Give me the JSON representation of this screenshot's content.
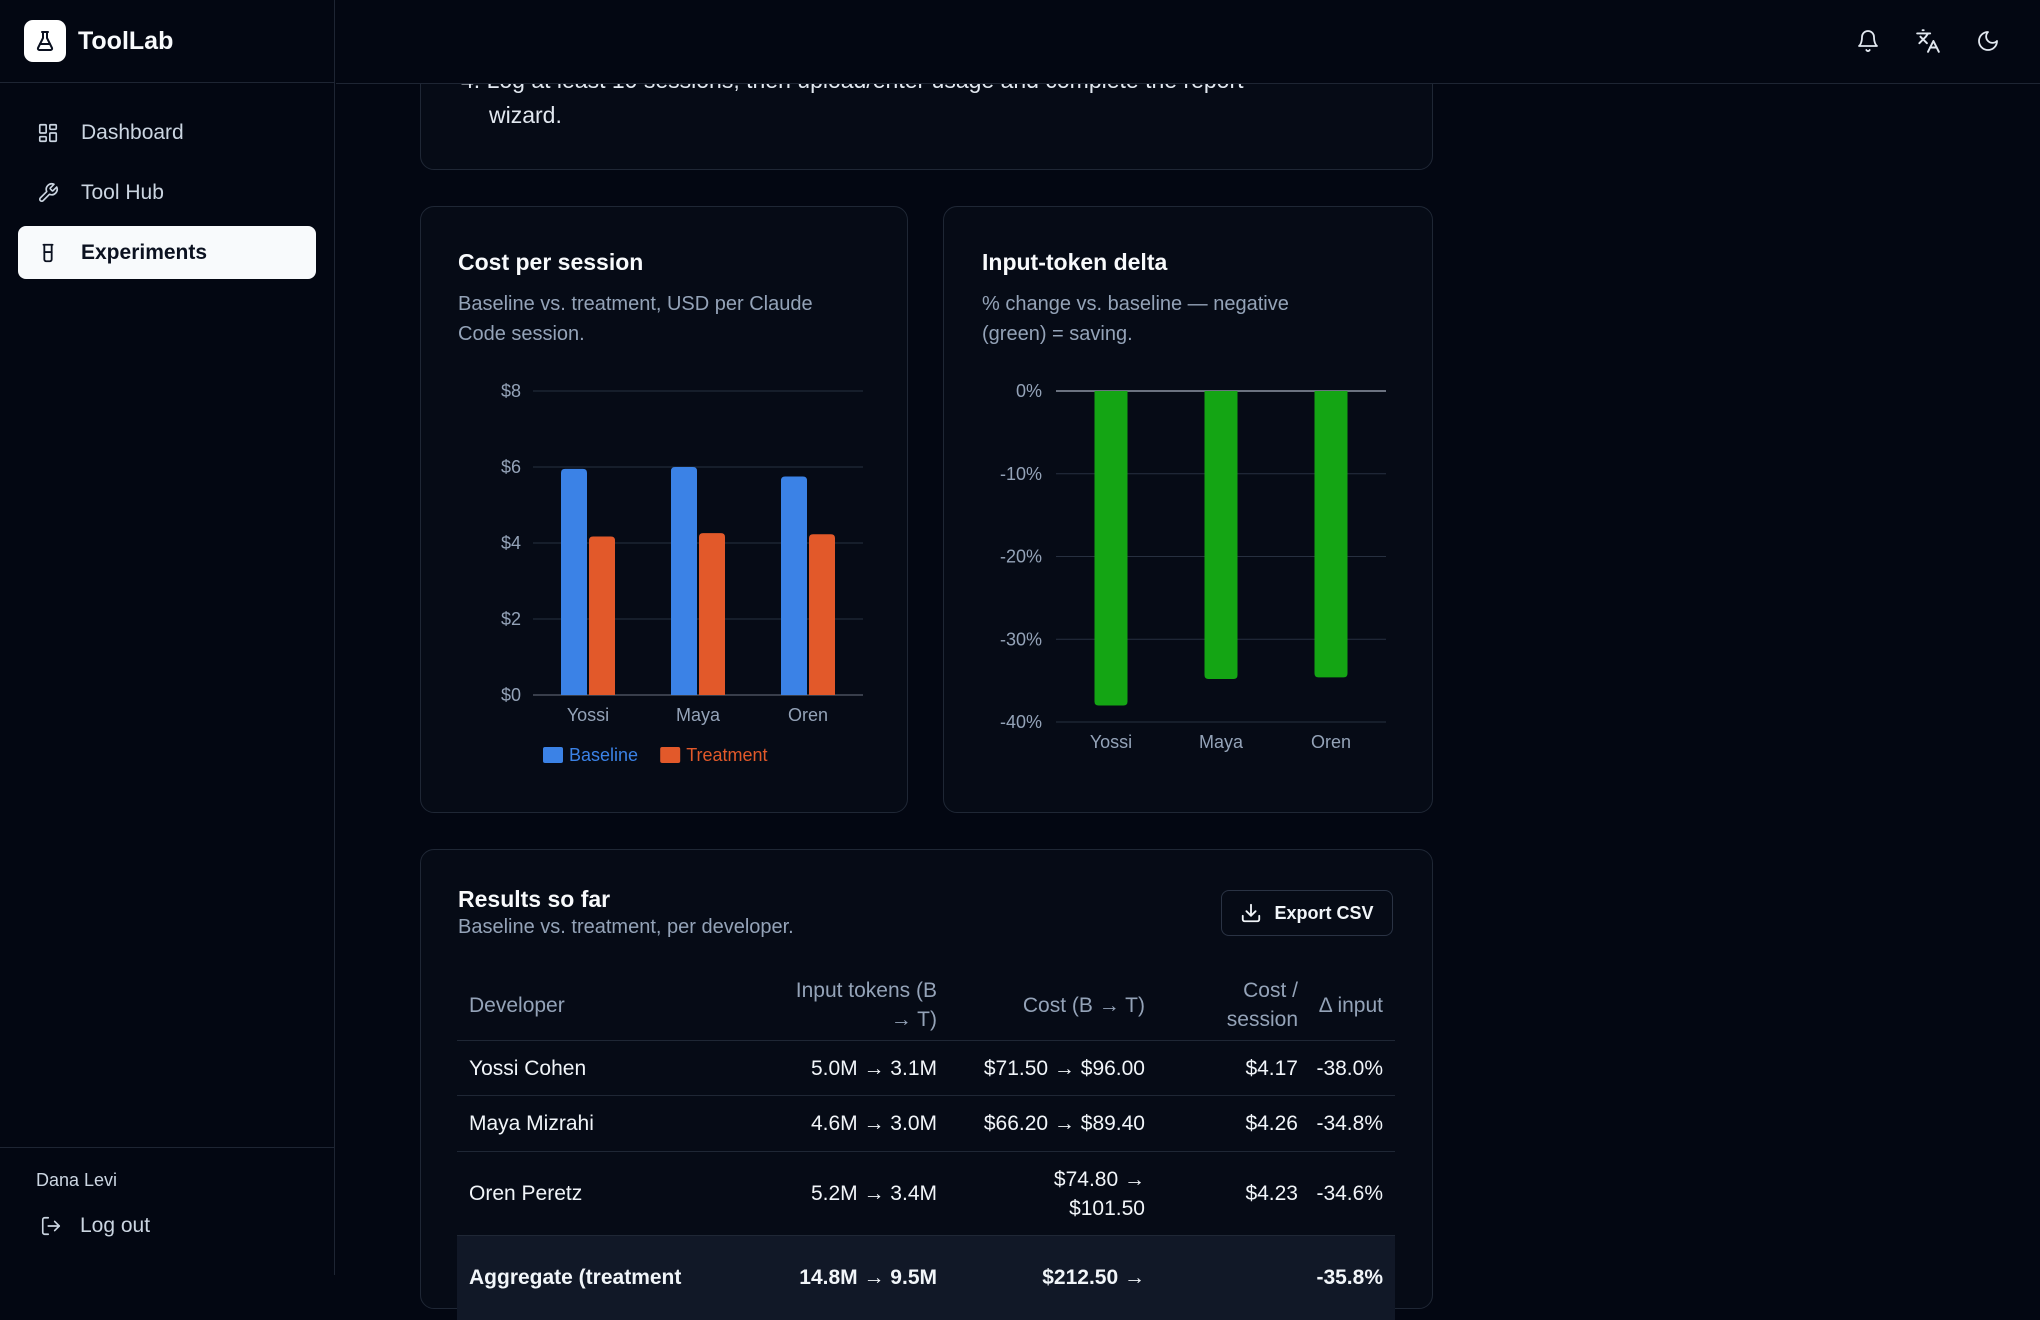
{
  "app": {
    "name": "ToolLab"
  },
  "sidebar": {
    "items": [
      {
        "label": "Dashboard",
        "icon": "dashboard-icon",
        "active": false
      },
      {
        "label": "Tool Hub",
        "icon": "wrench-icon",
        "active": false
      },
      {
        "label": "Experiments",
        "icon": "beaker-icon",
        "active": true
      }
    ],
    "user_name": "Dana Levi",
    "logout_label": "Log out"
  },
  "topbar": {
    "icons": [
      "bell-icon",
      "translate-icon",
      "moon-icon"
    ]
  },
  "instructions": {
    "line_partial": "4. Log at least 10 sessions, then upload/enter usage and complete the report",
    "line_continuation": "wizard."
  },
  "cost_chart": {
    "title": "Cost per session",
    "subtitle_line1": "Baseline vs. treatment, USD per Claude",
    "subtitle_line2": "Code session."
  },
  "delta_chart": {
    "title": "Input-token delta",
    "subtitle_line1": "% change vs. baseline — negative",
    "subtitle_line2": "(green) = saving."
  },
  "chart_data": [
    {
      "type": "bar",
      "title": "Cost per session",
      "categories": [
        "Yossi",
        "Maya",
        "Oren"
      ],
      "series": [
        {
          "name": "Baseline",
          "values": [
            5.95,
            6.0,
            5.75
          ],
          "color": "#3b82e6"
        },
        {
          "name": "Treatment",
          "values": [
            4.17,
            4.26,
            4.23
          ],
          "color": "#e2592a"
        }
      ],
      "y_ticks": [
        "$0",
        "$2",
        "$4",
        "$6",
        "$8"
      ],
      "ylim": [
        0,
        8
      ],
      "grid": true,
      "legend": "bottom"
    },
    {
      "type": "bar",
      "title": "Input-token delta",
      "categories": [
        "Yossi",
        "Maya",
        "Oren"
      ],
      "values": [
        -38.0,
        -34.8,
        -34.6
      ],
      "color": "#14a514",
      "y_ticks": [
        "0%",
        "-10%",
        "-20%",
        "-30%",
        "-40%"
      ],
      "ylim": [
        -40,
        0
      ],
      "grid": true
    }
  ],
  "results": {
    "title": "Results so far",
    "subtitle": "Baseline vs. treatment, per developer.",
    "export_label": "Export CSV",
    "headers": {
      "developer": "Developer",
      "tokens_1": "Input tokens (B",
      "tokens_2": "→ T)",
      "cost": "Cost (B → T)",
      "per_session_1": "Cost /",
      "per_session_2": "session",
      "delta": "Δ input"
    },
    "rows": [
      {
        "developer": "Yossi Cohen",
        "tokens": "5.0M → 3.1M",
        "cost_1": "$71.50 → $96.00",
        "cost_2": "",
        "per_session": "$4.17",
        "delta": "-38.0%"
      },
      {
        "developer": "Maya Mizrahi",
        "tokens": "4.6M → 3.0M",
        "cost_1": "$66.20 → $89.40",
        "cost_2": "",
        "per_session": "$4.26",
        "delta": "-34.8%"
      },
      {
        "developer": "Oren Peretz",
        "tokens": "5.2M → 3.4M",
        "cost_1": "$74.80 →",
        "cost_2": "$101.50",
        "per_session": "$4.23",
        "delta": "-34.6%"
      }
    ],
    "aggregate": {
      "developer": "Aggregate (treatment",
      "tokens": "14.8M → 9.5M",
      "cost": "$212.50 →",
      "delta": "-35.8%"
    }
  }
}
